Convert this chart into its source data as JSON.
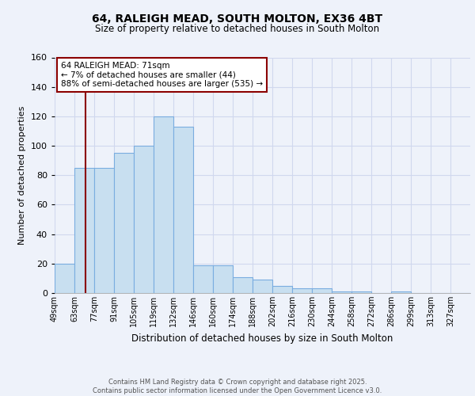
{
  "title1": "64, RALEIGH MEAD, SOUTH MOLTON, EX36 4BT",
  "title2": "Size of property relative to detached houses in South Molton",
  "xlabel": "Distribution of detached houses by size in South Molton",
  "ylabel": "Number of detached properties",
  "bin_labels": [
    "49sqm",
    "63sqm",
    "77sqm",
    "91sqm",
    "105sqm",
    "119sqm",
    "132sqm",
    "146sqm",
    "160sqm",
    "174sqm",
    "188sqm",
    "202sqm",
    "216sqm",
    "230sqm",
    "244sqm",
    "258sqm",
    "272sqm",
    "286sqm",
    "299sqm",
    "313sqm",
    "327sqm"
  ],
  "bar_heights": [
    20,
    85,
    85,
    95,
    100,
    120,
    113,
    19,
    19,
    11,
    9,
    5,
    3,
    3,
    1,
    1,
    0,
    1,
    0,
    0,
    0
  ],
  "bar_color": "#c8dff0",
  "bar_edge_color": "#7aade0",
  "vline_x": 1,
  "vline_color": "#8b0000",
  "annotation_line1": "64 RALEIGH MEAD: 71sqm",
  "annotation_line2": "← 7% of detached houses are smaller (44)",
  "annotation_line3": "88% of semi-detached houses are larger (535) →",
  "annotation_box_facecolor": "#ffffff",
  "annotation_box_edgecolor": "#8b0000",
  "background_color": "#eef2fa",
  "grid_color": "#d0d8ee",
  "footer_text": "Contains HM Land Registry data © Crown copyright and database right 2025.\nContains public sector information licensed under the Open Government Licence v3.0.",
  "ylim": [
    0,
    160
  ],
  "yticks": [
    0,
    20,
    40,
    60,
    80,
    100,
    120,
    140,
    160
  ]
}
